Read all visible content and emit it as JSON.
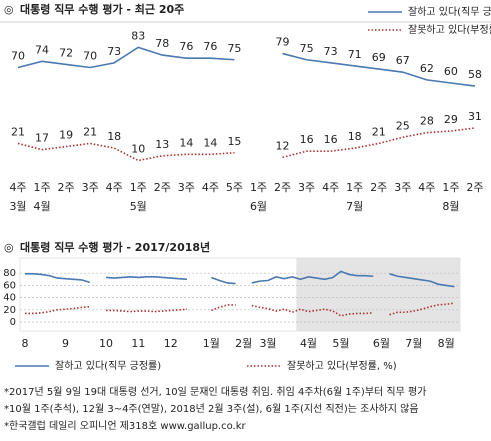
{
  "chart_data": [
    {
      "type": "line",
      "marker": "◎",
      "title": "대통령 직무 수행 평가 - 최근 20주",
      "categories": [
        "4주",
        "1주",
        "2주",
        "3주",
        "4주",
        "1주",
        "2주",
        "3주",
        "4주",
        "5주",
        "1주",
        "2주",
        "3주",
        "4주",
        "1주",
        "2주",
        "3주",
        "4주",
        "1주",
        "2주"
      ],
      "month_labels": [
        "3월",
        "4월",
        null,
        null,
        null,
        "5월",
        null,
        null,
        null,
        null,
        "6월",
        null,
        null,
        null,
        "7월",
        null,
        null,
        null,
        "8월",
        null
      ],
      "series": [
        {
          "name": "잘하고 있다(직무 긍정률)",
          "color": "#4a78b0",
          "style": "solid",
          "values": [
            70,
            74,
            72,
            70,
            73,
            83,
            78,
            76,
            76,
            75,
            null,
            79,
            75,
            73,
            71,
            69,
            67,
            62,
            60,
            58
          ]
        },
        {
          "name": "잘못하고 있다(부정률, %)",
          "color": "#a8302c",
          "style": "dotted",
          "values": [
            21,
            17,
            19,
            21,
            18,
            10,
            13,
            14,
            14,
            15,
            null,
            12,
            16,
            16,
            18,
            21,
            25,
            28,
            29,
            31
          ]
        }
      ]
    },
    {
      "type": "line",
      "marker": "◎",
      "title": "대통령 직무 수행 평가 - 2017/2018년",
      "categories": [
        "8",
        null,
        null,
        null,
        null,
        "9",
        null,
        null,
        null,
        null,
        "10",
        null,
        null,
        null,
        "11",
        null,
        null,
        null,
        "12",
        null,
        null,
        null,
        null,
        "1월",
        null,
        null,
        null,
        "2월",
        null,
        null,
        "3월",
        null,
        null,
        null,
        null,
        "4월",
        null,
        null,
        null,
        "5월",
        null,
        null,
        null,
        null,
        "6월",
        null,
        null,
        null,
        "7월",
        null,
        null,
        null,
        "8월",
        null
      ],
      "ylim": [
        0,
        100
      ],
      "yticks": [
        0,
        20,
        40,
        60,
        80
      ],
      "grid": true,
      "series": [
        {
          "name": "잘하고 있다(직무 긍정률)",
          "color": "#4a78b0",
          "style": "solid",
          "values": [
            79,
            79,
            78,
            76,
            72,
            71,
            70,
            69,
            65,
            null,
            73,
            72,
            73,
            74,
            73,
            74,
            74,
            73,
            72,
            71,
            70,
            null,
            null,
            73,
            68,
            64,
            63,
            null,
            64,
            67,
            68,
            74,
            71,
            74,
            70,
            74,
            72,
            70,
            73,
            83,
            78,
            76,
            76,
            75,
            null,
            79,
            75,
            73,
            71,
            69,
            67,
            62,
            60,
            58
          ]
        },
        {
          "name": "잘못하고 있다(부정률, %)",
          "color": "#a8302c",
          "style": "dotted",
          "values": [
            14,
            14,
            15,
            17,
            20,
            21,
            22,
            24,
            25,
            null,
            19,
            19,
            18,
            17,
            18,
            18,
            17,
            18,
            19,
            20,
            21,
            null,
            null,
            19,
            24,
            28,
            28,
            null,
            27,
            24,
            22,
            18,
            21,
            16,
            21,
            17,
            19,
            21,
            18,
            10,
            13,
            14,
            14,
            15,
            null,
            12,
            16,
            16,
            18,
            21,
            25,
            28,
            29,
            31
          ]
        }
      ]
    }
  ],
  "notes": [
    "*2017년 5월 9일 19대 대통령 선거, 10일 문재인 대통령 취임. 취임 4주차(6월 1주)부터 직무 평가",
    "*10월 1주(추석), 12월 3~4주(연말), 2018년 2월 3주(설), 6월 1주(지선 직전)는 조사하지 않음",
    "*한국갤럽 데일리 오피니언 제318호 www.gallup.co.kr"
  ]
}
